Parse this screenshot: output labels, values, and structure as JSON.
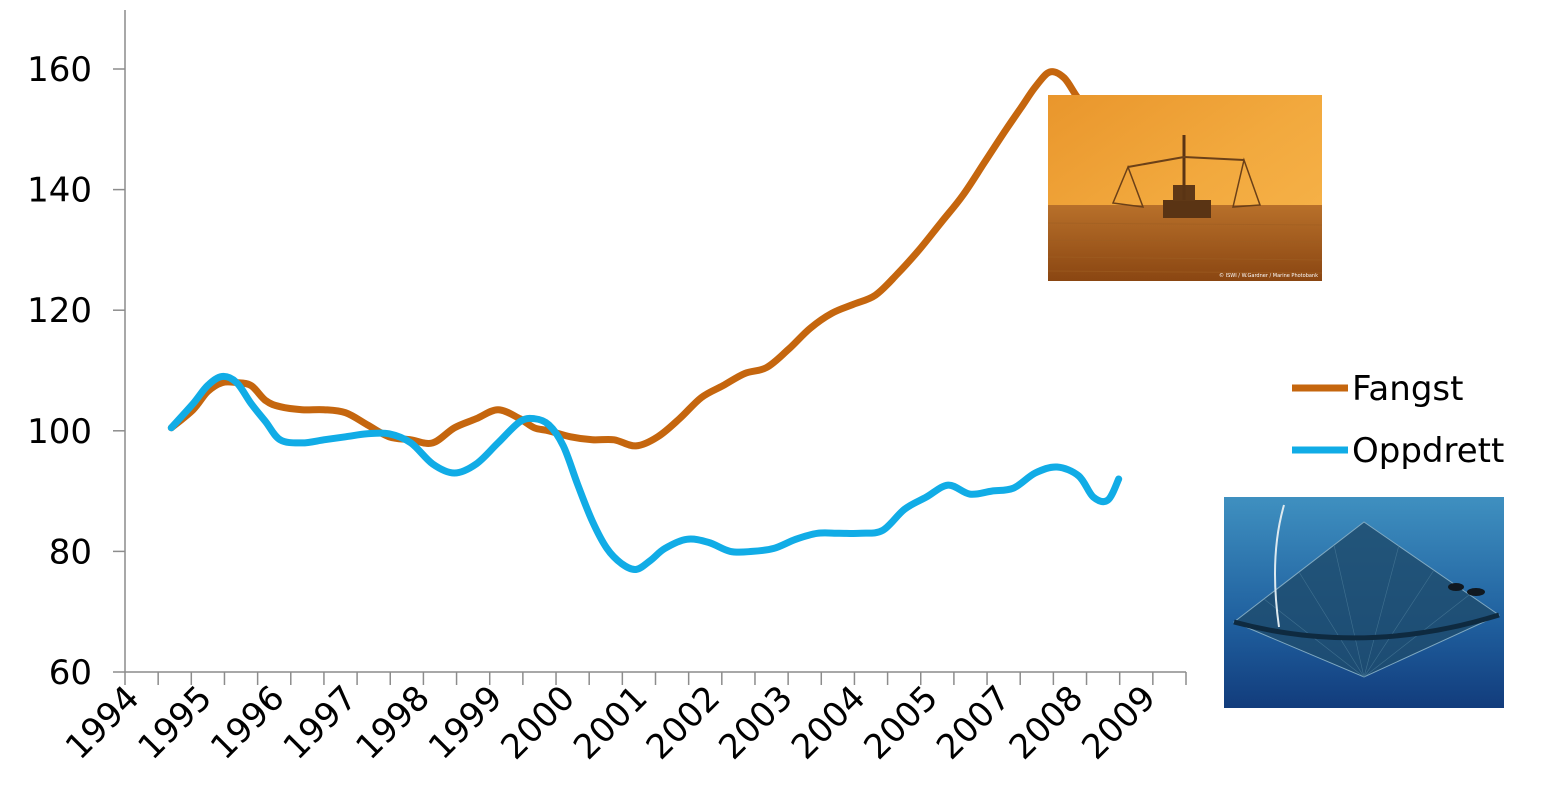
{
  "chart_data": {
    "type": "line",
    "title": "",
    "xlabel": "",
    "ylabel": "",
    "ylim": [
      60,
      170
    ],
    "yticks": [
      "60",
      "80",
      "100",
      "120",
      "140",
      "160"
    ],
    "categories": [
      "1994",
      "1995",
      "1996",
      "1997",
      "1998",
      "1999",
      "2000",
      "2001",
      "2002",
      "2003",
      "2004",
      "2005",
      "2007",
      "2008",
      "2009"
    ],
    "grid": false,
    "legend_position": "right",
    "series": [
      {
        "name": "Fangst",
        "color": "#C5660E",
        "x": [
          0.5,
          0.8,
          1.0,
          1.2,
          1.4,
          1.6,
          1.8,
          2.0,
          2.3,
          2.6,
          2.9,
          3.2,
          3.5,
          3.8,
          4.1,
          4.4,
          4.7,
          5.0,
          5.3,
          5.5,
          5.7,
          6.0,
          6.3,
          6.6,
          6.9,
          7.2,
          7.5,
          7.8,
          8.1,
          8.4,
          8.7,
          9.0,
          9.3,
          9.6,
          9.9,
          10.2,
          10.5,
          10.8,
          11.1,
          11.4,
          11.7,
          12.0,
          12.2,
          12.4,
          12.6,
          12.8,
          13.0,
          13.2,
          13.4
        ],
        "values": [
          100.5,
          103.5,
          106.5,
          108,
          108,
          107.5,
          105,
          104,
          103.5,
          103.5,
          103,
          101,
          99,
          98.5,
          98,
          100.5,
          102,
          103.5,
          102,
          100.5,
          100,
          99,
          98.5,
          98.5,
          97.5,
          99,
          102,
          105.5,
          107.5,
          109.5,
          110.5,
          113.5,
          117,
          119.5,
          121,
          122.5,
          126,
          130,
          134.5,
          139,
          144.5,
          150,
          153.5,
          157,
          159.5,
          158.5,
          155,
          153,
          152
        ]
      },
      {
        "name": "Oppdrett",
        "color": "#11ACE6",
        "x": [
          0.5,
          0.8,
          1.0,
          1.2,
          1.4,
          1.6,
          1.8,
          2.0,
          2.3,
          2.6,
          2.9,
          3.2,
          3.5,
          3.8,
          4.1,
          4.4,
          4.7,
          5.0,
          5.3,
          5.5,
          5.7,
          5.9,
          6.1,
          6.3,
          6.5,
          6.7,
          6.9,
          7.1,
          7.3,
          7.6,
          7.9,
          8.2,
          8.5,
          8.8,
          9.1,
          9.4,
          9.7,
          10.0,
          10.3,
          10.6,
          10.9,
          11.2,
          11.5,
          11.8,
          12.1,
          12.4,
          12.7,
          13.0,
          13.2,
          13.4,
          13.55
        ],
        "values": [
          100.5,
          104.5,
          107.5,
          109,
          108,
          104.5,
          101.5,
          98.5,
          98,
          98.5,
          99,
          99.5,
          99.5,
          98,
          94.5,
          93,
          94.5,
          98,
          101.5,
          102,
          101,
          97.5,
          91,
          85,
          80.5,
          78,
          77,
          78.5,
          80.5,
          82,
          81.5,
          80,
          80,
          80.5,
          82,
          83,
          83,
          83,
          83.5,
          87,
          89,
          91,
          89.5,
          90,
          90.5,
          93,
          94,
          92.5,
          89,
          88.5,
          92
        ]
      }
    ]
  },
  "images": {
    "trawler": {
      "label": "© ISWI / W.Gardner / Marine Photobank"
    }
  },
  "colors": {
    "fangst": "#C5660E",
    "oppdrett": "#11ACE6",
    "axis": "#8C8C8C"
  }
}
